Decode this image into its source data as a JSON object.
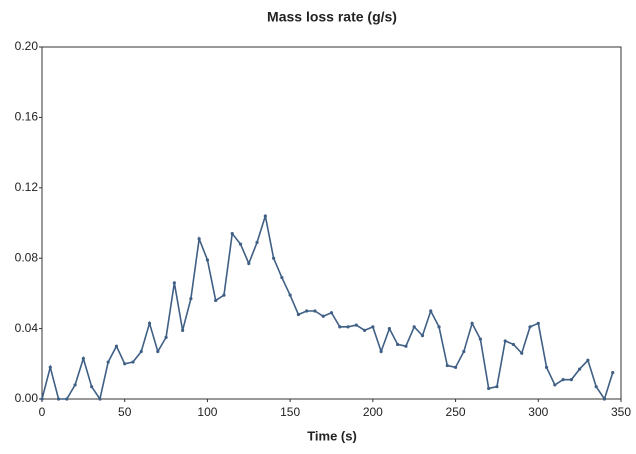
{
  "chart_data": {
    "type": "line",
    "title": "Mass loss rate (g/s)",
    "x_label": "Time (s)",
    "series": [
      {
        "name": "Mass loss rate",
        "color": "#3f5f85",
        "x": [
          0,
          5,
          10,
          15,
          20,
          25,
          30,
          35,
          40,
          45,
          50,
          55,
          60,
          65,
          70,
          75,
          80,
          85,
          90,
          95,
          100,
          105,
          110,
          115,
          120,
          125,
          130,
          135,
          140,
          145,
          150,
          155,
          160,
          165,
          170,
          175,
          180,
          185,
          190,
          195,
          200,
          205,
          210,
          215,
          220,
          225,
          230,
          235,
          240,
          245,
          250,
          255,
          260,
          265,
          270,
          275,
          280,
          285,
          290,
          295,
          300,
          305,
          310,
          315,
          320,
          325,
          330,
          335,
          340,
          345
        ],
        "values": [
          0.0,
          0.018,
          0.0,
          0.0,
          0.008,
          0.023,
          0.007,
          0.0,
          0.021,
          0.03,
          0.02,
          0.021,
          0.027,
          0.043,
          0.027,
          0.035,
          0.066,
          0.039,
          0.057,
          0.091,
          0.079,
          0.056,
          0.059,
          0.094,
          0.088,
          0.077,
          0.089,
          0.104,
          0.08,
          0.069,
          0.059,
          0.048,
          0.05,
          0.05,
          0.047,
          0.049,
          0.041,
          0.041,
          0.042,
          0.039,
          0.041,
          0.027,
          0.04,
          0.031,
          0.03,
          0.041,
          0.036,
          0.05,
          0.041,
          0.019,
          0.018,
          0.027,
          0.043,
          0.034,
          0.006,
          0.007,
          0.033,
          0.031,
          0.026,
          0.041,
          0.043,
          0.018,
          0.008,
          0.011,
          0.011,
          0.017,
          0.022,
          0.007,
          0.0,
          0.015
        ]
      }
    ],
    "xlim": [
      0,
      350
    ],
    "xticks": [
      0,
      50,
      100,
      150,
      200,
      250,
      300,
      350
    ],
    "ylim": [
      0,
      0.2
    ],
    "yticks": [
      {
        "value": 0,
        "label": "0.00"
      },
      {
        "value": 0.04,
        "label": "0.04"
      },
      {
        "value": 0.08,
        "label": "0.08"
      },
      {
        "value": 0.12,
        "label": "0.12"
      },
      {
        "value": 0.16,
        "label": "0.16"
      },
      {
        "value": 0.2,
        "label": "0.20"
      }
    ],
    "grid": false
  }
}
